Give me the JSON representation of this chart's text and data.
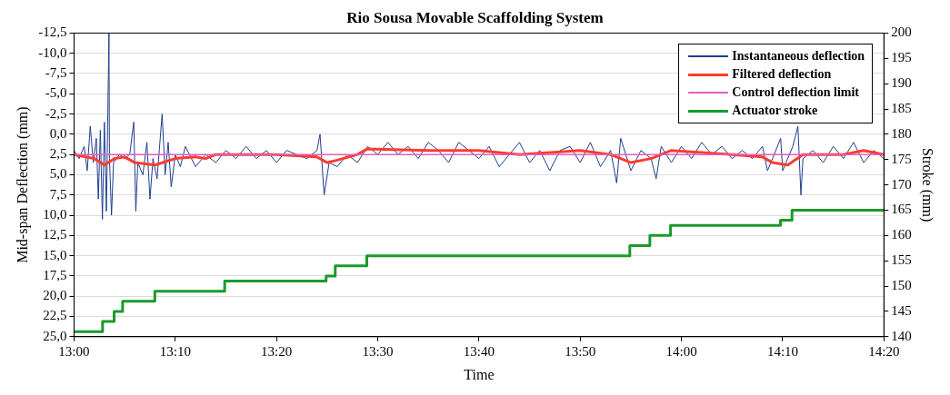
{
  "chart_data": {
    "type": "line",
    "title": "Rio Sousa Movable Scaffolding System",
    "xlabel": "Time",
    "ylabel": "Mid-span Deflection (mm)",
    "y2label": "Stroke (mm)",
    "xlim": [
      13,
      14.3333
    ],
    "xticks": [
      {
        "value": 13,
        "label": "13:00"
      },
      {
        "value": 13.1667,
        "label": "13:10"
      },
      {
        "value": 13.3333,
        "label": "13:20"
      },
      {
        "value": 13.5,
        "label": "13:30"
      },
      {
        "value": 13.6667,
        "label": "13:40"
      },
      {
        "value": 13.8333,
        "label": "13:50"
      },
      {
        "value": 14,
        "label": "14:00"
      },
      {
        "value": 14.1667,
        "label": "14:10"
      },
      {
        "value": 14.3333,
        "label": "14:20"
      }
    ],
    "ylim": [
      25,
      -12.5
    ],
    "yticks": [
      {
        "value": 25,
        "label": "25,0"
      },
      {
        "value": 22.5,
        "label": "22,5"
      },
      {
        "value": 20,
        "label": "20,0"
      },
      {
        "value": 17.5,
        "label": "17,5"
      },
      {
        "value": 15,
        "label": "15,0"
      },
      {
        "value": 12.5,
        "label": "12,5"
      },
      {
        "value": 10,
        "label": "10,0"
      },
      {
        "value": 7.5,
        "label": "7,5"
      },
      {
        "value": 5,
        "label": "5,0"
      },
      {
        "value": 2.5,
        "label": "2,5"
      },
      {
        "value": 0,
        "label": "0,0"
      },
      {
        "value": -2.5,
        "label": "-2,5"
      },
      {
        "value": -5,
        "label": "-5,0"
      },
      {
        "value": -7.5,
        "label": "-7,5"
      },
      {
        "value": -10,
        "label": "-10,0"
      },
      {
        "value": -12.5,
        "label": "-12,5"
      }
    ],
    "y2lim": [
      140,
      200
    ],
    "y2ticks": [
      140,
      145,
      150,
      155,
      160,
      165,
      170,
      175,
      180,
      185,
      190,
      195,
      200
    ],
    "grid": "y",
    "legend": "top right",
    "series": [
      {
        "name": "Instantaneous deflection",
        "type": "line",
        "color": "#1f3f8f",
        "x": [
          13,
          13.0083,
          13.0167,
          13.0217,
          13.0267,
          13.0317,
          13.0367,
          13.04,
          13.0433,
          13.0467,
          13.05,
          13.0533,
          13.0575,
          13.0583,
          13.0617,
          13.065,
          13.075,
          13.0833,
          13.0917,
          13.0983,
          13.1017,
          13.105,
          13.1133,
          13.12,
          13.125,
          13.13,
          13.1367,
          13.145,
          13.15,
          13.155,
          13.16,
          13.1667,
          13.175,
          13.1833,
          13.2,
          13.2167,
          13.2333,
          13.25,
          13.2667,
          13.2833,
          13.3,
          13.3167,
          13.3333,
          13.35,
          13.3667,
          13.3833,
          13.4,
          13.405,
          13.4117,
          13.42,
          13.4333,
          13.45,
          13.4667,
          13.4833,
          13.5,
          13.5167,
          13.5333,
          13.55,
          13.5667,
          13.5833,
          13.6,
          13.6167,
          13.6333,
          13.65,
          13.6667,
          13.6833,
          13.7,
          13.7167,
          13.7333,
          13.75,
          13.7667,
          13.7833,
          13.8,
          13.8167,
          13.8333,
          13.85,
          13.8667,
          13.8833,
          13.8933,
          13.9,
          13.9167,
          13.9333,
          13.95,
          13.9583,
          13.9667,
          13.9833,
          14,
          14.0167,
          14.0333,
          14.05,
          14.0667,
          14.0833,
          14.1,
          14.1167,
          14.1333,
          14.1417,
          14.15,
          14.1633,
          14.1667,
          14.1833,
          14.1917,
          14.1967,
          14.2,
          14.2167,
          14.2333,
          14.25,
          14.2667,
          14.2833,
          14.3,
          14.3167,
          14.3333
        ],
        "values": [
          2.0,
          3.0,
          1.5,
          4.5,
          -1.0,
          3.5,
          0.5,
          8.0,
          -0.5,
          10.5,
          -1.5,
          9.5,
          -12.5,
          3.0,
          10.0,
          3.5,
          2.5,
          3.0,
          2.5,
          -1.5,
          9.5,
          3.5,
          5.0,
          1.0,
          8.0,
          3.0,
          5.5,
          -2.5,
          5.0,
          1.0,
          6.5,
          2.5,
          4.0,
          1.5,
          4.0,
          2.5,
          3.5,
          2.0,
          3.0,
          1.5,
          3.0,
          2.0,
          3.5,
          2.0,
          2.5,
          3.0,
          2.0,
          0.0,
          7.5,
          3.5,
          4.0,
          2.5,
          3.5,
          1.5,
          2.5,
          1.0,
          2.5,
          1.5,
          3.0,
          1.0,
          2.0,
          3.5,
          1.0,
          2.0,
          3.0,
          1.5,
          4.0,
          2.5,
          1.0,
          3.5,
          2.0,
          4.5,
          2.0,
          1.5,
          3.5,
          1.0,
          4.0,
          2.0,
          6.0,
          0.5,
          4.5,
          2.0,
          3.0,
          5.5,
          1.5,
          3.5,
          1.5,
          3.0,
          1.0,
          2.5,
          1.5,
          3.0,
          2.0,
          3.0,
          1.5,
          4.5,
          3.0,
          0.5,
          4.5,
          1.5,
          -1.0,
          7.5,
          3.0,
          2.0,
          3.5,
          1.5,
          3.0,
          1.0,
          3.5,
          2.0,
          3.0
        ]
      },
      {
        "name": "Filtered deflection",
        "type": "line",
        "color": "#ff3b30",
        "x": [
          13,
          13.0333,
          13.05,
          13.0667,
          13.0833,
          13.1,
          13.1333,
          13.1667,
          13.2,
          13.2167,
          13.2333,
          13.3333,
          13.4,
          13.4167,
          13.4333,
          13.4667,
          13.4833,
          13.5833,
          13.6667,
          13.7333,
          13.8333,
          13.8833,
          13.9167,
          13.95,
          13.9833,
          14.0833,
          14.1333,
          14.15,
          14.175,
          14.2,
          14.2667,
          14.3,
          14.3333
        ],
        "values": [
          2.5,
          3.0,
          3.8,
          3.0,
          2.8,
          3.5,
          3.8,
          3.0,
          2.8,
          3.0,
          2.5,
          2.5,
          2.8,
          3.5,
          3.2,
          2.5,
          1.8,
          2.0,
          2.0,
          2.5,
          2.0,
          2.5,
          3.5,
          3.0,
          2.0,
          2.5,
          2.8,
          3.5,
          3.8,
          2.5,
          2.5,
          2.0,
          2.5
        ]
      },
      {
        "name": "Control deflection limit",
        "type": "line",
        "color": "#e060c0",
        "x": [
          13,
          14.3333
        ],
        "values": [
          2.5,
          2.5
        ]
      },
      {
        "name": "Actuator stroke",
        "type": "step",
        "axis": "y2",
        "color": "#1a9a2a",
        "x": [
          13,
          13.047,
          13.066,
          13.08,
          13.133,
          13.248,
          13.415,
          13.43,
          13.482,
          13.915,
          13.948,
          13.982,
          14.163,
          14.182,
          14.3333
        ],
        "values": [
          141,
          143,
          145,
          147,
          149,
          151,
          152,
          154,
          156,
          158,
          160,
          162,
          163,
          165,
          165
        ]
      }
    ]
  }
}
